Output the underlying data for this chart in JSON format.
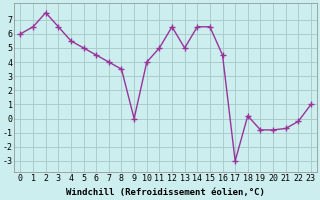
{
  "x": [
    0,
    1,
    2,
    3,
    4,
    5,
    6,
    7,
    8,
    9,
    10,
    11,
    12,
    13,
    14,
    15,
    16,
    17,
    18,
    19,
    20,
    21,
    22,
    23
  ],
  "y": [
    6.0,
    6.5,
    7.5,
    6.5,
    5.5,
    5.0,
    4.5,
    4.0,
    3.5,
    0.0,
    4.0,
    5.0,
    6.5,
    5.0,
    6.5,
    6.5,
    4.5,
    -3.0,
    0.2,
    -0.8,
    -0.8,
    -0.7,
    -0.2,
    1.0
  ],
  "color": "#993399",
  "bg_color": "#cceeee",
  "grid_color": "#aacccc",
  "xlabel": "Windchill (Refroidissement éolien,°C)",
  "ylabel_ticks": [
    -3,
    -2,
    -1,
    0,
    1,
    2,
    3,
    4,
    5,
    6,
    7
  ],
  "xlim": [
    -0.5,
    23.5
  ],
  "ylim": [
    -3.8,
    8.2
  ],
  "xticks": [
    0,
    1,
    2,
    3,
    4,
    5,
    6,
    7,
    8,
    9,
    10,
    11,
    12,
    13,
    14,
    15,
    16,
    17,
    18,
    19,
    20,
    21,
    22,
    23
  ],
  "marker": "+",
  "marker_size": 4,
  "line_width": 1.0,
  "xlabel_fontsize": 6.5,
  "tick_fontsize": 6.0
}
